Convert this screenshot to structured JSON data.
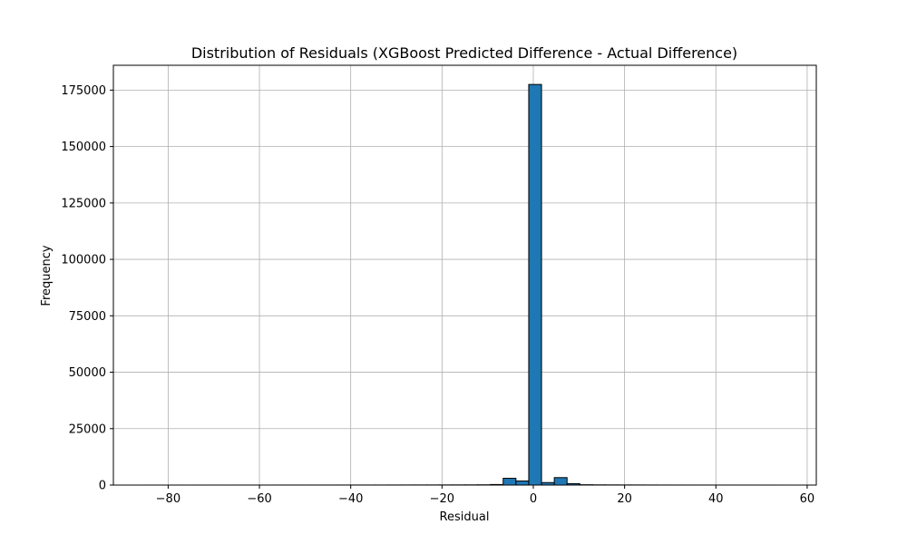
{
  "chart_data": {
    "type": "histogram",
    "title": "Distribution of Residuals (XGBoost Predicted Difference - Actual Difference)",
    "xlabel": "Residual",
    "ylabel": "Frequency",
    "xlim": [
      -92,
      62
    ],
    "ylim": [
      0,
      186000
    ],
    "x_ticks": [
      -80,
      -60,
      -40,
      -20,
      0,
      20,
      40,
      60
    ],
    "x_tick_labels": [
      "−80",
      "−60",
      "−40",
      "−20",
      "0",
      "20",
      "40",
      "60"
    ],
    "y_ticks": [
      0,
      25000,
      50000,
      75000,
      100000,
      125000,
      150000,
      175000
    ],
    "y_tick_labels": [
      "0",
      "25000",
      "50000",
      "75000",
      "100000",
      "125000",
      "150000",
      "175000"
    ],
    "grid": true,
    "bar_color": "#1f77b4",
    "edge_color": "#000000",
    "bins": [
      {
        "start": -85.0,
        "end": -82.2,
        "count": 2
      },
      {
        "start": -82.2,
        "end": -79.4,
        "count": 0
      },
      {
        "start": -79.4,
        "end": -76.6,
        "count": 5
      },
      {
        "start": -76.6,
        "end": -73.8,
        "count": 3
      },
      {
        "start": -73.8,
        "end": -71.0,
        "count": 4
      },
      {
        "start": -71.0,
        "end": -68.2,
        "count": 6
      },
      {
        "start": -68.2,
        "end": -65.4,
        "count": 5
      },
      {
        "start": -65.4,
        "end": -62.6,
        "count": 8
      },
      {
        "start": -62.6,
        "end": -59.8,
        "count": 10
      },
      {
        "start": -59.8,
        "end": -57.0,
        "count": 9
      },
      {
        "start": -57.0,
        "end": -54.2,
        "count": 12
      },
      {
        "start": -54.2,
        "end": -51.4,
        "count": 14
      },
      {
        "start": -51.4,
        "end": -48.6,
        "count": 15
      },
      {
        "start": -48.6,
        "end": -45.8,
        "count": 18
      },
      {
        "start": -45.8,
        "end": -43.0,
        "count": 20
      },
      {
        "start": -43.0,
        "end": -40.2,
        "count": 22
      },
      {
        "start": -40.2,
        "end": -37.4,
        "count": 25
      },
      {
        "start": -37.4,
        "end": -34.6,
        "count": 28
      },
      {
        "start": -34.6,
        "end": -31.8,
        "count": 30
      },
      {
        "start": -31.8,
        "end": -29.0,
        "count": 35
      },
      {
        "start": -29.0,
        "end": -26.2,
        "count": 40
      },
      {
        "start": -26.2,
        "end": -23.4,
        "count": 45
      },
      {
        "start": -23.4,
        "end": -20.6,
        "count": 52
      },
      {
        "start": -20.6,
        "end": -17.8,
        "count": 60
      },
      {
        "start": -17.8,
        "end": -15.0,
        "count": 70
      },
      {
        "start": -15.0,
        "end": -12.2,
        "count": 85
      },
      {
        "start": -12.2,
        "end": -9.4,
        "count": 110
      },
      {
        "start": -9.4,
        "end": -6.6,
        "count": 250
      },
      {
        "start": -6.6,
        "end": -3.8,
        "count": 3000
      },
      {
        "start": -3.8,
        "end": -1.0,
        "count": 1800
      },
      {
        "start": -1.0,
        "end": 1.8,
        "count": 177500
      },
      {
        "start": 1.8,
        "end": 4.6,
        "count": 1100
      },
      {
        "start": 4.6,
        "end": 7.4,
        "count": 3300
      },
      {
        "start": 7.4,
        "end": 10.2,
        "count": 600
      },
      {
        "start": 10.2,
        "end": 13.0,
        "count": 140
      },
      {
        "start": 13.0,
        "end": 15.8,
        "count": 90
      },
      {
        "start": 15.8,
        "end": 18.6,
        "count": 70
      },
      {
        "start": 18.6,
        "end": 21.4,
        "count": 55
      },
      {
        "start": 21.4,
        "end": 24.2,
        "count": 45
      },
      {
        "start": 24.2,
        "end": 27.0,
        "count": 35
      },
      {
        "start": 27.0,
        "end": 29.8,
        "count": 28
      },
      {
        "start": 29.8,
        "end": 32.6,
        "count": 22
      },
      {
        "start": 32.6,
        "end": 35.4,
        "count": 18
      },
      {
        "start": 35.4,
        "end": 38.2,
        "count": 15
      },
      {
        "start": 38.2,
        "end": 41.0,
        "count": 12
      },
      {
        "start": 41.0,
        "end": 43.8,
        "count": 10
      },
      {
        "start": 43.8,
        "end": 46.6,
        "count": 8
      },
      {
        "start": 46.6,
        "end": 49.4,
        "count": 6
      },
      {
        "start": 49.4,
        "end": 52.2,
        "count": 4
      },
      {
        "start": 52.2,
        "end": 55.0,
        "count": 3
      }
    ]
  }
}
